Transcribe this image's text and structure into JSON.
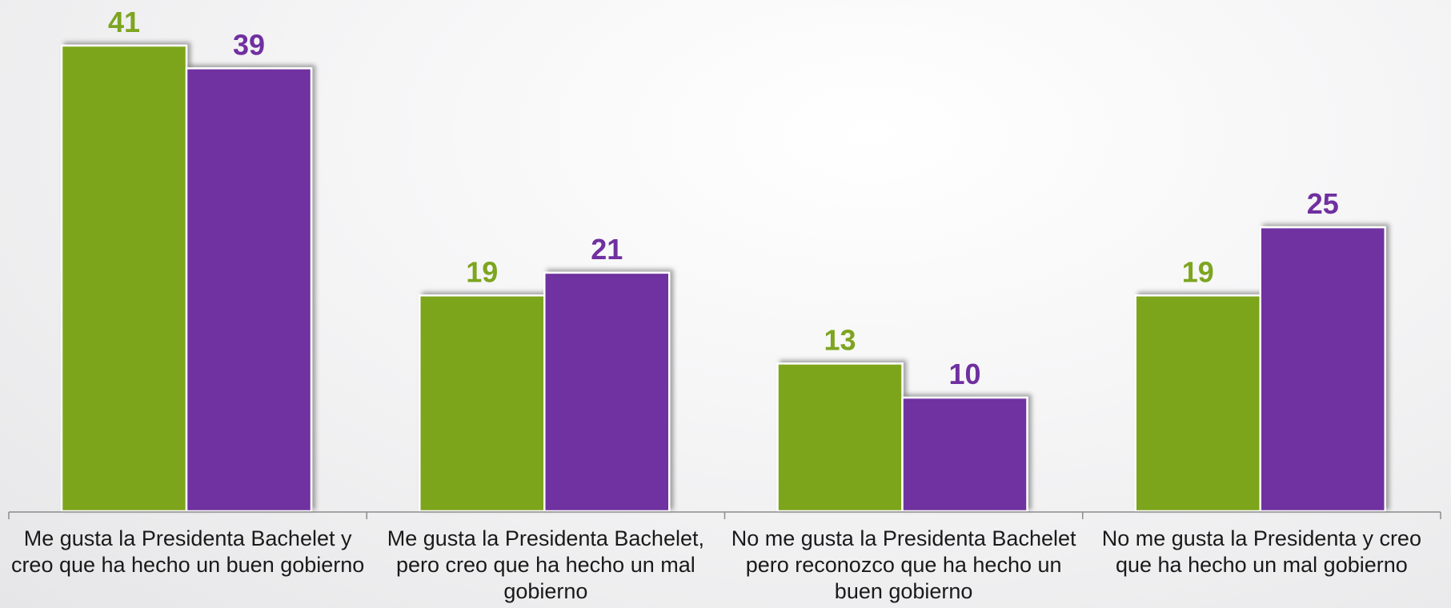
{
  "chart_data": {
    "type": "bar",
    "categories": [
      "Me gusta la Presidenta Bachelet y creo que ha hecho un buen gobierno",
      "Me gusta la Presidenta Bachelet, pero creo que ha hecho un mal gobierno",
      "No me gusta la Presidenta Bachelet pero reconozco que ha hecho un buen gobierno",
      "No me gusta la Presidenta y creo que ha hecho un mal gobierno"
    ],
    "series": [
      {
        "values": [
          41,
          19,
          13,
          19
        ],
        "color": "#7da51f"
      },
      {
        "values": [
          39,
          21,
          10,
          25
        ],
        "color": "#7030a0"
      }
    ],
    "ylim": [
      0,
      41
    ],
    "data_labels": true,
    "grid": false,
    "legend": "none"
  }
}
